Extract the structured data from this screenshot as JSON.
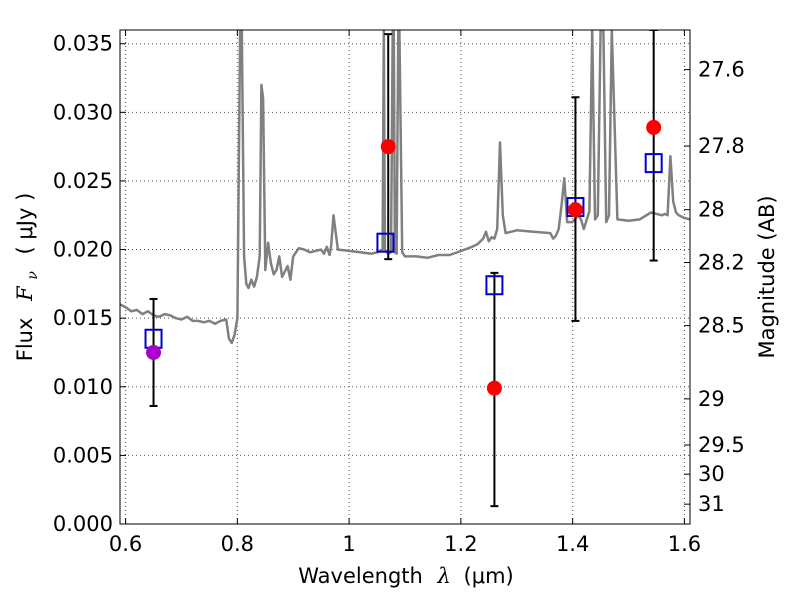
{
  "chart_data": {
    "type": "scatter",
    "xlabel_prefix": "Wavelength",
    "xlabel_symbol": "λ",
    "xlabel_unit": "(μm)",
    "ylabel_prefix": "Flux",
    "ylabel_symbol": "F",
    "ylabel_subscript": "ν",
    "ylabel_unit": "( μJy )",
    "y2label": "Magnitude (AB)",
    "xlim": [
      0.59,
      1.61
    ],
    "ylim": [
      0.0,
      0.036
    ],
    "x_ticks": [
      0.6,
      0.8,
      1.0,
      1.2,
      1.4,
      1.6
    ],
    "x_tick_labels": [
      "0.6",
      "0.8",
      "1",
      "1.2",
      "1.4",
      "1.6"
    ],
    "y_ticks": [
      0.0,
      0.005,
      0.01,
      0.015,
      0.02,
      0.025,
      0.03,
      0.035
    ],
    "y_tick_labels": [
      "0.000",
      "0.005",
      "0.010",
      "0.015",
      "0.020",
      "0.025",
      "0.030",
      "0.035"
    ],
    "y2_ticks": [
      {
        "mag": 27.6,
        "label": "27.6"
      },
      {
        "mag": 27.8,
        "label": "27.8"
      },
      {
        "mag": 28.0,
        "label": "28"
      },
      {
        "mag": 28.2,
        "label": "28.2"
      },
      {
        "mag": 28.5,
        "label": "28.5"
      },
      {
        "mag": 29.0,
        "label": "29"
      },
      {
        "mag": 29.5,
        "label": "29.5"
      },
      {
        "mag": 30.0,
        "label": "30"
      },
      {
        "mag": 31.0,
        "label": "31"
      }
    ],
    "grid": true,
    "colors": {
      "model": "#808080",
      "model_points": "#0000cc",
      "observed": "#ff0000",
      "observed_first": "#aa00cc",
      "errorbar": "#000000",
      "grid": "#555555"
    },
    "model_spectrum": {
      "x": [
        0.59,
        0.6,
        0.61,
        0.62,
        0.63,
        0.64,
        0.65,
        0.66,
        0.67,
        0.68,
        0.69,
        0.7,
        0.71,
        0.72,
        0.73,
        0.74,
        0.75,
        0.76,
        0.77,
        0.78,
        0.785,
        0.79,
        0.795,
        0.8,
        0.805,
        0.808,
        0.812,
        0.816,
        0.82,
        0.825,
        0.83,
        0.835,
        0.84,
        0.843,
        0.846,
        0.85,
        0.855,
        0.86,
        0.865,
        0.87,
        0.875,
        0.88,
        0.89,
        0.895,
        0.9,
        0.91,
        0.92,
        0.93,
        0.94,
        0.95,
        0.955,
        0.96,
        0.965,
        0.968,
        0.972,
        0.98,
        1.0,
        1.02,
        1.04,
        1.05,
        1.06,
        1.062,
        1.064,
        1.068,
        1.07,
        1.075,
        1.078,
        1.08,
        1.082,
        1.085,
        1.088,
        1.09,
        1.095,
        1.1,
        1.12,
        1.14,
        1.16,
        1.18,
        1.2,
        1.22,
        1.23,
        1.24,
        1.245,
        1.25,
        1.255,
        1.26,
        1.265,
        1.27,
        1.275,
        1.28,
        1.3,
        1.33,
        1.36,
        1.365,
        1.37,
        1.375,
        1.38,
        1.385,
        1.39,
        1.4,
        1.41,
        1.415,
        1.42,
        1.43,
        1.435,
        1.44,
        1.445,
        1.45,
        1.455,
        1.46,
        1.465,
        1.47,
        1.48,
        1.5,
        1.52,
        1.54,
        1.56,
        1.565,
        1.57,
        1.575,
        1.58,
        1.585,
        1.59,
        1.6,
        1.61
      ],
      "y": [
        0.016,
        0.0158,
        0.0155,
        0.0156,
        0.0153,
        0.0155,
        0.0152,
        0.0151,
        0.0153,
        0.0152,
        0.015,
        0.0149,
        0.0151,
        0.0148,
        0.0148,
        0.0147,
        0.0148,
        0.0146,
        0.0148,
        0.0149,
        0.0135,
        0.0132,
        0.0138,
        0.015,
        0.036,
        0.036,
        0.0195,
        0.0175,
        0.0172,
        0.0178,
        0.0173,
        0.018,
        0.0195,
        0.032,
        0.031,
        0.0185,
        0.0205,
        0.019,
        0.0182,
        0.0185,
        0.0195,
        0.018,
        0.0188,
        0.0178,
        0.0195,
        0.0201,
        0.02,
        0.0198,
        0.0199,
        0.02,
        0.0197,
        0.0202,
        0.0196,
        0.0203,
        0.0225,
        0.02,
        0.0199,
        0.0198,
        0.0197,
        0.0198,
        0.02,
        0.036,
        0.02,
        0.0198,
        0.0197,
        0.0198,
        0.036,
        0.036,
        0.0198,
        0.0197,
        0.036,
        0.036,
        0.0198,
        0.0195,
        0.0195,
        0.0194,
        0.0196,
        0.0196,
        0.0199,
        0.0202,
        0.0204,
        0.0208,
        0.0213,
        0.0206,
        0.0209,
        0.0208,
        0.0215,
        0.0278,
        0.0225,
        0.0212,
        0.0214,
        0.0213,
        0.0212,
        0.0208,
        0.021,
        0.0215,
        0.0232,
        0.0252,
        0.022,
        0.022,
        0.0225,
        0.0222,
        0.0215,
        0.0228,
        0.036,
        0.0222,
        0.0225,
        0.036,
        0.036,
        0.022,
        0.0225,
        0.036,
        0.0222,
        0.0221,
        0.0222,
        0.0227,
        0.0225,
        0.0226,
        0.0225,
        0.0268,
        0.0235,
        0.0227,
        0.0225,
        0.0223,
        0.0222
      ]
    },
    "model_points": {
      "x": [
        0.65,
        1.065,
        1.26,
        1.405,
        1.545
      ],
      "y": [
        0.0135,
        0.0205,
        0.0174,
        0.0231,
        0.0263
      ]
    },
    "observed": {
      "x": [
        0.65,
        1.07,
        1.26,
        1.405,
        1.545
      ],
      "y": [
        0.0125,
        0.0275,
        0.0099,
        0.0229,
        0.0289
      ],
      "err_low": [
        0.0086,
        0.0193,
        0.0013,
        0.0148,
        0.0192
      ],
      "err_high": [
        0.0164,
        0.0357,
        0.0183,
        0.0311,
        0.036
      ]
    }
  }
}
